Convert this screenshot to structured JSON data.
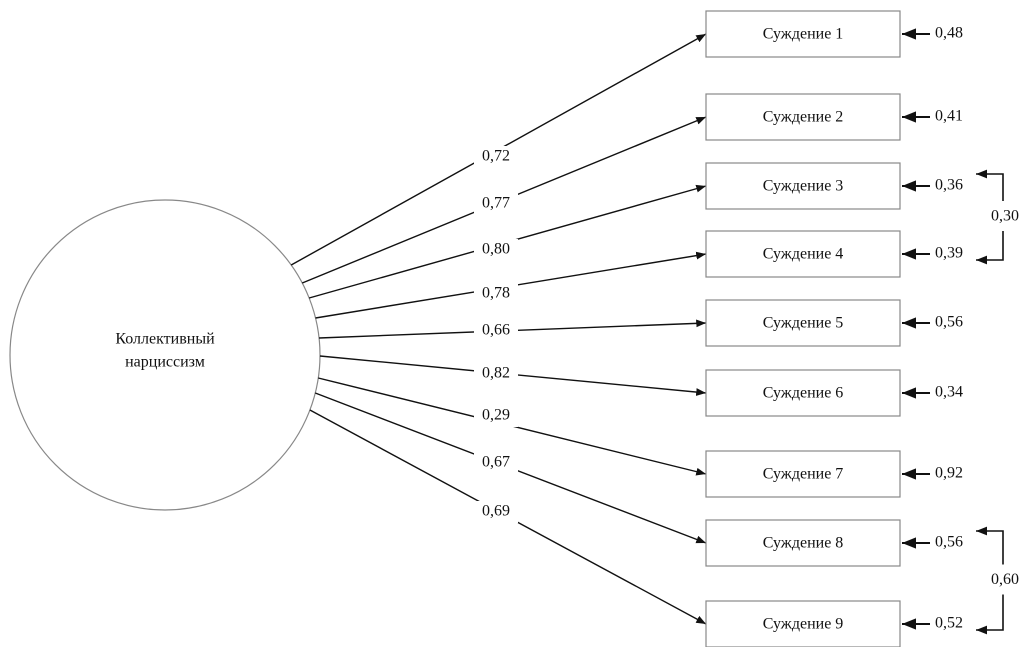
{
  "latent": {
    "lines": [
      "Коллективный",
      "нарциссизм"
    ]
  },
  "items": [
    {
      "label": "Суждение 1",
      "loading": "0,72",
      "error": "0,48"
    },
    {
      "label": "Суждение 2",
      "loading": "0,77",
      "error": "0,41"
    },
    {
      "label": "Суждение 3",
      "loading": "0,80",
      "error": "0,36"
    },
    {
      "label": "Суждение 4",
      "loading": "0,78",
      "error": "0,39"
    },
    {
      "label": "Суждение 5",
      "loading": "0,66",
      "error": "0,56"
    },
    {
      "label": "Суждение 6",
      "loading": "0,82",
      "error": "0,34"
    },
    {
      "label": "Суждение 7",
      "loading": "0,29",
      "error": "0,92"
    },
    {
      "label": "Суждение 8",
      "loading": "0,67",
      "error": "0,56"
    },
    {
      "label": "Суждение 9",
      "loading": "0,69",
      "error": "0,52"
    }
  ],
  "correlations": [
    {
      "value": "0,30"
    },
    {
      "value": "0,60"
    }
  ]
}
